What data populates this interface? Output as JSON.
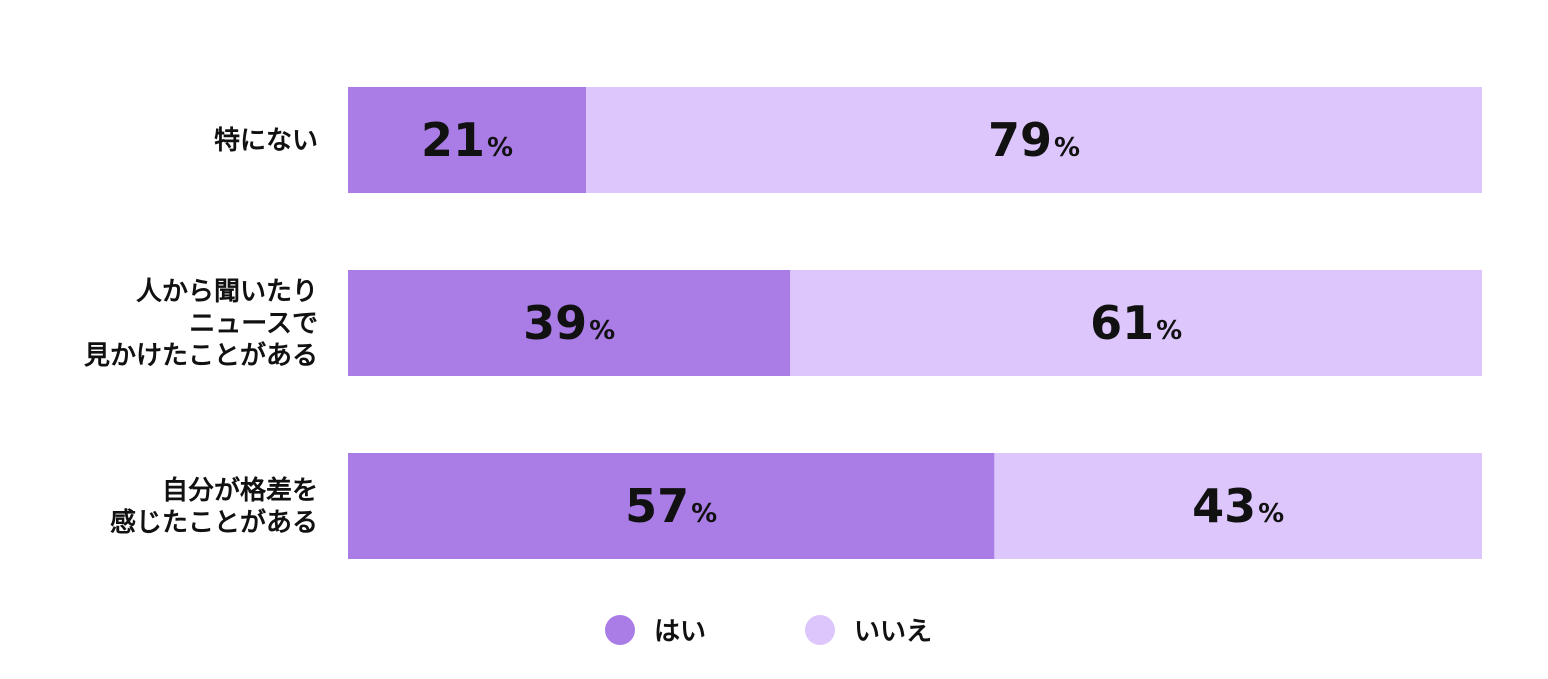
{
  "chart_data": {
    "type": "bar",
    "orientation": "horizontal",
    "stacked": true,
    "percent_stacked": true,
    "categories": [
      [
        "特にない"
      ],
      [
        "人から聞いたり",
        "ニュースで",
        "見かけたことがある"
      ],
      [
        "自分が格差を",
        "感じたことがある"
      ]
    ],
    "series": [
      {
        "name": "はい",
        "values": [
          21,
          39,
          57
        ],
        "color": "#aa7ce6"
      },
      {
        "name": "いいえ",
        "values": [
          79,
          61,
          43
        ],
        "color": "#dcc6fc"
      }
    ],
    "value_suffix": "%",
    "xlim": [
      0,
      100
    ],
    "grid": false,
    "legend": "bottom-center"
  }
}
